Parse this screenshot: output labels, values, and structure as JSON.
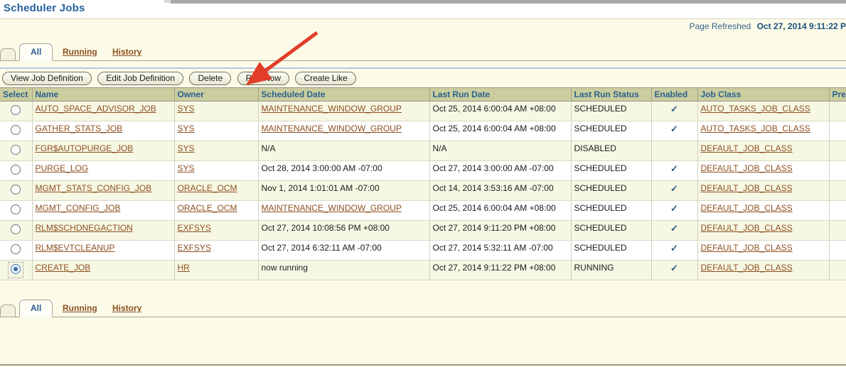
{
  "page": {
    "title": "Scheduler Jobs",
    "refresh_label": "Page Refreshed",
    "refresh_time": "Oct 27, 2014 9:11:22 P"
  },
  "tabs": {
    "all": "All",
    "running": "Running",
    "history": "History",
    "active": "All"
  },
  "toolbar": {
    "buttons": [
      "View Job Definition",
      "Edit Job Definition",
      "Delete",
      "Run Now",
      "Create Like"
    ]
  },
  "annotation": {
    "arrow_target": "Run Now",
    "arrow_color": "#e23d28"
  },
  "table": {
    "columns": [
      "Select",
      "Name",
      "Owner",
      "Scheduled Date",
      "Last Run Date",
      "Last Run Status",
      "Enabled",
      "Job Class",
      "Pre"
    ],
    "enabled_glyph": "✓",
    "rows": [
      {
        "name": "AUTO_SPACE_ADVISOR_JOB",
        "owner": "SYS",
        "scheduled": "MAINTENANCE_WINDOW_GROUP",
        "scheduled_link": true,
        "last_run": "Oct 25, 2014 6:00:04 AM +08:00",
        "status": "SCHEDULED",
        "enabled": true,
        "job_class": "AUTO_TASKS_JOB_CLASS",
        "selected": false
      },
      {
        "name": "GATHER_STATS_JOB",
        "owner": "SYS",
        "scheduled": "MAINTENANCE_WINDOW_GROUP",
        "scheduled_link": true,
        "last_run": "Oct 25, 2014 6:00:04 AM +08:00",
        "status": "SCHEDULED",
        "enabled": true,
        "job_class": "AUTO_TASKS_JOB_CLASS",
        "selected": false
      },
      {
        "name": "FGR$AUTOPURGE_JOB",
        "owner": "SYS",
        "scheduled": "N/A",
        "scheduled_link": false,
        "last_run": "N/A",
        "status": "DISABLED",
        "enabled": false,
        "job_class": "DEFAULT_JOB_CLASS",
        "selected": false
      },
      {
        "name": "PURGE_LOG",
        "owner": "SYS",
        "scheduled": "Oct 28, 2014 3:00:00 AM -07:00",
        "scheduled_link": false,
        "last_run": "Oct 27, 2014 3:00:00 AM -07:00",
        "status": "SCHEDULED",
        "enabled": true,
        "job_class": "DEFAULT_JOB_CLASS",
        "selected": false
      },
      {
        "name": "MGMT_STATS_CONFIG_JOB",
        "owner": "ORACLE_OCM",
        "scheduled": "Nov 1, 2014 1:01:01 AM -07:00",
        "scheduled_link": false,
        "last_run": "Oct 14, 2014 3:53:16 AM -07:00",
        "status": "SCHEDULED",
        "enabled": true,
        "job_class": "DEFAULT_JOB_CLASS",
        "selected": false
      },
      {
        "name": "MGMT_CONFIG_JOB",
        "owner": "ORACLE_OCM",
        "scheduled": "MAINTENANCE_WINDOW_GROUP",
        "scheduled_link": true,
        "last_run": "Oct 25, 2014 6:00:04 AM +08:00",
        "status": "SCHEDULED",
        "enabled": true,
        "job_class": "DEFAULT_JOB_CLASS",
        "selected": false
      },
      {
        "name": "RLM$SCHDNEGACTION",
        "owner": "EXFSYS",
        "scheduled": "Oct 27, 2014 10:08:56 PM +08:00",
        "scheduled_link": false,
        "last_run": "Oct 27, 2014 9:11:20 PM +08:00",
        "status": "SCHEDULED",
        "enabled": true,
        "job_class": "DEFAULT_JOB_CLASS",
        "selected": false
      },
      {
        "name": "RLM$EVTCLEANUP",
        "owner": "EXFSYS",
        "scheduled": "Oct 27, 2014 6:32:11 AM -07:00",
        "scheduled_link": false,
        "last_run": "Oct 27, 2014 5:32:11 AM -07:00",
        "status": "SCHEDULED",
        "enabled": true,
        "job_class": "DEFAULT_JOB_CLASS",
        "selected": false
      },
      {
        "name": "CREATE_JOB",
        "owner": "HR",
        "scheduled": "now running",
        "scheduled_link": false,
        "last_run": "Oct 27, 2014 9:11:22 PM +08:00",
        "status": "RUNNING",
        "enabled": true,
        "job_class": "DEFAULT_JOB_CLASS",
        "selected": true
      }
    ]
  }
}
